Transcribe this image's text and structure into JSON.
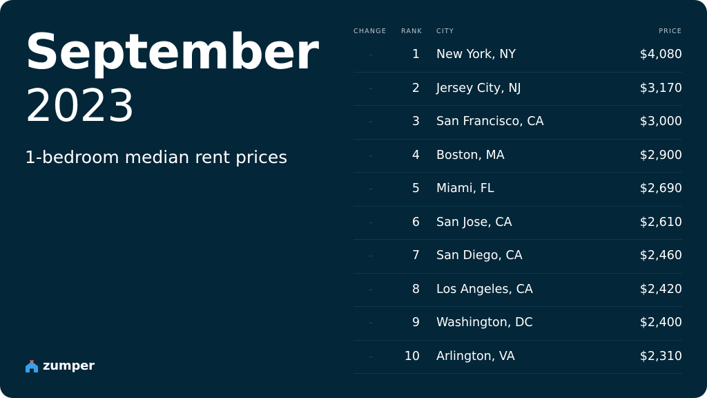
{
  "header": {
    "month": "September",
    "year": "2023",
    "subtitle": "1-bedroom median rent prices"
  },
  "brand": {
    "name": "zumper",
    "icon": "house-heart-icon"
  },
  "colors": {
    "background": "#032638",
    "text": "#ffffff",
    "accent_icon": "#3aa0e6",
    "heart": "#ff5a5f"
  },
  "chart_data": {
    "type": "table",
    "columns": [
      "CHANGE",
      "RANK",
      "CITY",
      "PRICE"
    ],
    "rows": [
      {
        "change": "–",
        "rank": "1",
        "city": "New York, NY",
        "price": "$4,080"
      },
      {
        "change": "–",
        "rank": "2",
        "city": "Jersey City, NJ",
        "price": "$3,170"
      },
      {
        "change": "–",
        "rank": "3",
        "city": "San Francisco, CA",
        "price": "$3,000"
      },
      {
        "change": "–",
        "rank": "4",
        "city": "Boston, MA",
        "price": "$2,900"
      },
      {
        "change": "–",
        "rank": "5",
        "city": "Miami, FL",
        "price": "$2,690"
      },
      {
        "change": "–",
        "rank": "6",
        "city": "San Jose, CA",
        "price": "$2,610"
      },
      {
        "change": "–",
        "rank": "7",
        "city": "San Diego, CA",
        "price": "$2,460"
      },
      {
        "change": "–",
        "rank": "8",
        "city": "Los Angeles, CA",
        "price": "$2,420"
      },
      {
        "change": "–",
        "rank": "9",
        "city": "Washington, DC",
        "price": "$2,400"
      },
      {
        "change": "–",
        "rank": "10",
        "city": "Arlington, VA",
        "price": "$2,310"
      }
    ]
  }
}
